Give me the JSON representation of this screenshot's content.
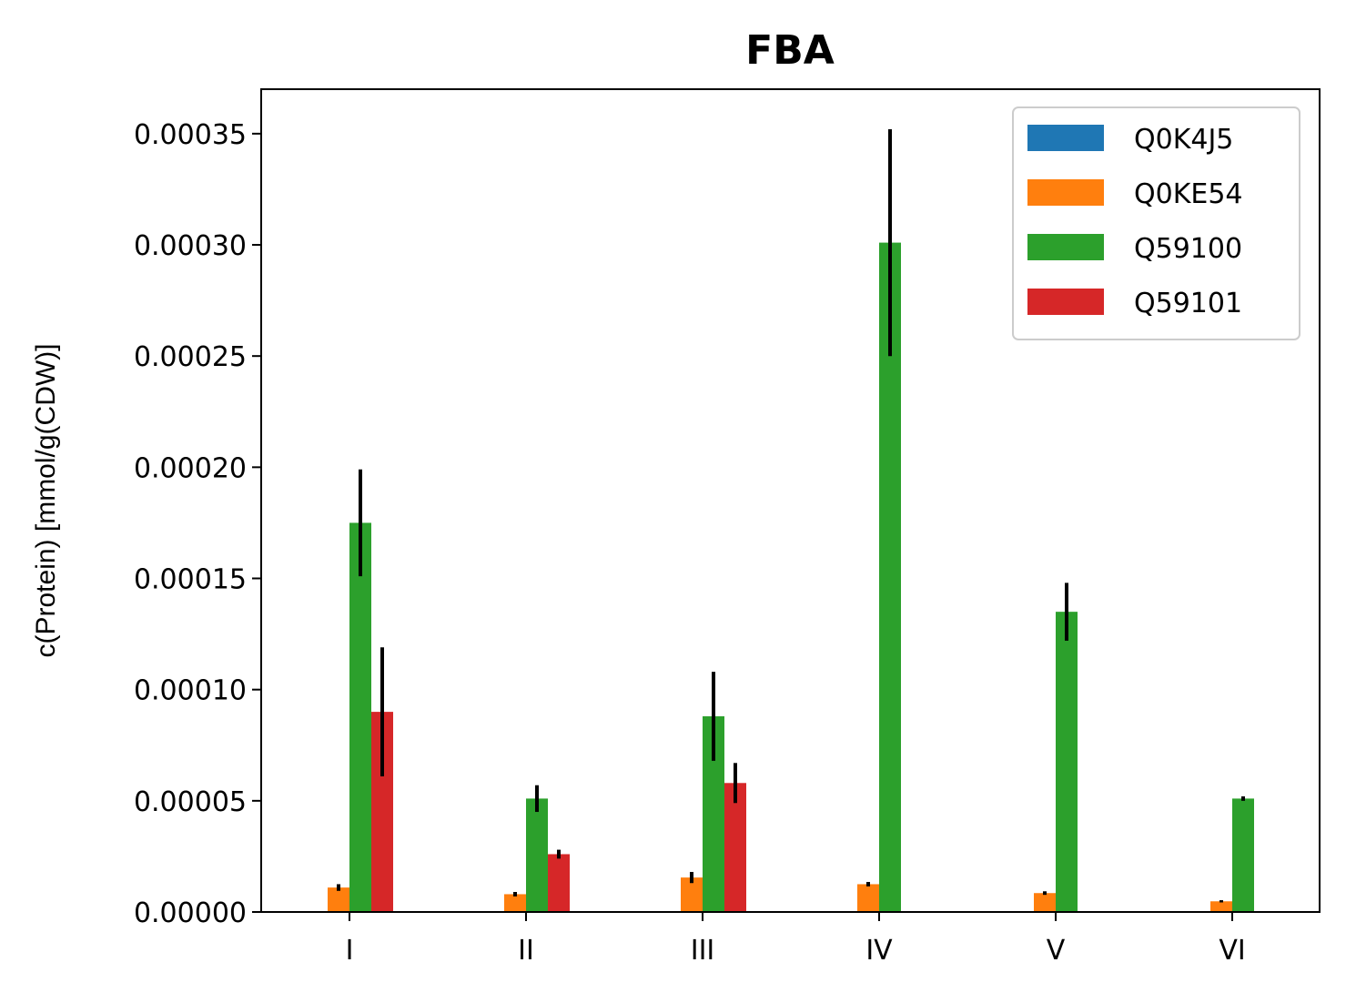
{
  "chart_data": {
    "type": "bar",
    "title": "FBA",
    "xlabel": "",
    "ylabel": "c(Protein) [mmol/g(CDW)]",
    "categories": [
      "I",
      "II",
      "III",
      "IV",
      "V",
      "VI"
    ],
    "ylim": [
      0,
      0.00037
    ],
    "yticks": [
      "0.00000",
      "0.00005",
      "0.00010",
      "0.00015",
      "0.00020",
      "0.00025",
      "0.00030",
      "0.00035"
    ],
    "ytick_values": [
      0,
      5e-05,
      0.0001,
      0.00015,
      0.0002,
      0.00025,
      0.0003,
      0.00035
    ],
    "legend_position": "top-right",
    "grid": false,
    "series": [
      {
        "name": "Q0K4J5",
        "color": "#1f77b4",
        "values": [
          0,
          0,
          0,
          0,
          0,
          0
        ],
        "errors": [
          0,
          0,
          0,
          0,
          0,
          0
        ]
      },
      {
        "name": "Q0KE54",
        "color": "#ff7f0e",
        "values": [
          1.1e-05,
          8e-06,
          1.55e-05,
          1.25e-05,
          8.5e-06,
          4.8e-06
        ],
        "errors": [
          1.5e-06,
          1e-06,
          2.5e-06,
          1e-06,
          8e-07,
          5e-07
        ]
      },
      {
        "name": "Q59100",
        "color": "#2ca02c",
        "values": [
          0.000175,
          5.1e-05,
          8.8e-05,
          0.000301,
          0.000135,
          5.1e-05
        ],
        "errors": [
          2.4e-05,
          6e-06,
          2e-05,
          5.1e-05,
          1.3e-05,
          1e-06
        ]
      },
      {
        "name": "Q59101",
        "color": "#d62728",
        "values": [
          9e-05,
          2.6e-05,
          5.8e-05,
          0,
          0,
          0
        ],
        "errors": [
          2.9e-05,
          2e-06,
          9e-06,
          0,
          0,
          0
        ]
      }
    ]
  }
}
